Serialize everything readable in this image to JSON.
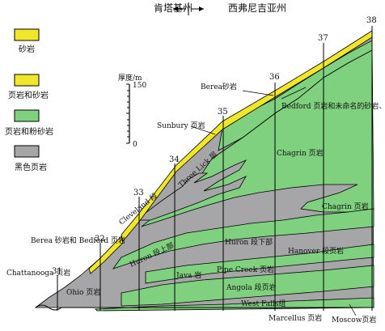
{
  "header": {
    "left_region": "肯塔基州",
    "right_region": "西弗尼吉亚州"
  },
  "legend": [
    {
      "label": "砂岩",
      "color": "#f0e62a"
    },
    {
      "label": "页岩和砂岩",
      "color": "#f0e62a"
    },
    {
      "label": "页岩和粉砂岩",
      "color": "#7fd07f"
    },
    {
      "label": "黑色页岩",
      "color": "#a6a6a8"
    }
  ],
  "scale": {
    "title": "厚度/m",
    "top": "150",
    "bottom": "0"
  },
  "wells": [
    "31",
    "32",
    "33",
    "34",
    "35",
    "36",
    "37",
    "38"
  ],
  "labels": {
    "chattanooga": "Chattanooga 页岩",
    "berea_bedford": "Berea 砂岩和 Bedford 页岩",
    "ohio": "Ohio 页岩",
    "cleveland": "Cleveland 段",
    "three_lick": "Three Lick 层",
    "huron_upper": "Huron 段上部",
    "huron_lower": "Huron 段下部",
    "java": "Java 岩",
    "pipe_creek": "Pipe Creek 页岩",
    "hanover": "Hanover 段页岩",
    "angola": "Angola 段页岩",
    "west_falls": "West Falls组",
    "marcellus": "Marcellus 页岩",
    "moscow": "Moscow页岩",
    "sunbury": "Sunbury 页岩",
    "berea": "Berea砂岩",
    "bedford": "Bedford 页岩和未命名的砂岩、粉砂岩",
    "chagrin1": "Chagrin 页岩",
    "chagrin2": "Chagrin 页岩"
  }
}
